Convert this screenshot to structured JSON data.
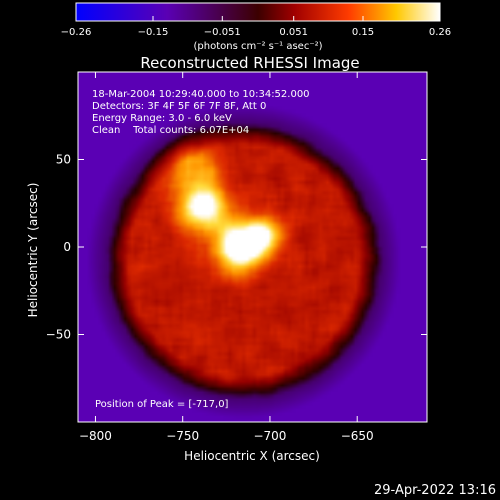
{
  "chart_data": {
    "type": "heatmap",
    "title": "Reconstructed RHESSI Image",
    "xlabel": "Heliocentric X (arcsec)",
    "ylabel": "Heliocentric Y (arcsec)",
    "xlim": [
      -810,
      -610
    ],
    "ylim": [
      -100,
      100
    ],
    "x_ticks": [
      -800,
      -750,
      -700,
      -650
    ],
    "x_tick_labels": [
      "−800",
      "−750",
      "−700",
      "−650"
    ],
    "y_ticks": [
      50,
      0,
      -50
    ],
    "y_tick_labels": [
      "50",
      "0",
      "−50"
    ],
    "colorbar": {
      "range": [
        -0.26,
        0.26
      ],
      "ticks": [
        -0.26,
        -0.15,
        -0.051,
        0.051,
        0.15,
        0.26
      ],
      "tick_labels": [
        "−0.26",
        "−0.15",
        "−0.051",
        "0.051",
        "0.15",
        "0.26"
      ],
      "units_label": "(photons cm⁻² s⁻¹ asec⁻²)",
      "colormap": "blue-purple-red-yellow-white"
    },
    "annotations": [
      "18-Mar-2004 10:29:40.000 to 10:34:52.000",
      "Detectors: 3F 4F 5F 6F 7F 8F, Att 0",
      "Energy Range: 3.0 - 6.0 keV",
      "Clean    Total counts: 6.07E+04"
    ],
    "peak_label": "Position of Peak = [-717,0]",
    "peak_position": [
      -717,
      0
    ],
    "sources": [
      {
        "x": -717,
        "y": 0,
        "sigma": 9,
        "amp": 0.26
      },
      {
        "x": -738,
        "y": 22,
        "sigma": 9,
        "amp": 0.2
      },
      {
        "x": -704,
        "y": 7,
        "sigma": 7,
        "amp": 0.17
      },
      {
        "x": -745,
        "y": 45,
        "sigma": 12,
        "amp": 0.09
      }
    ],
    "disk": {
      "center": [
        -715,
        -8
      ],
      "radius": 78,
      "level": 0.08
    }
  },
  "timestamp": "29-Apr-2022 13:16"
}
